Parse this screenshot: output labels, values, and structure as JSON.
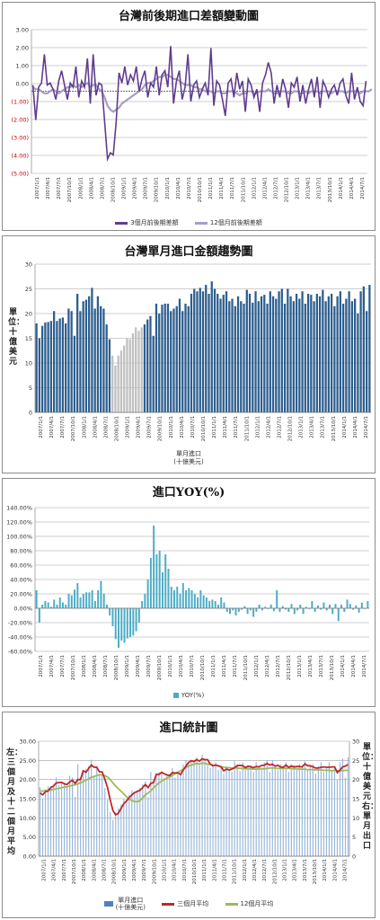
{
  "chart_data": [
    {
      "type": "line",
      "title": "台灣前後期進口差額變動圖",
      "y_ticks": [
        "3.00",
        "2.00",
        "1.00",
        "0.00",
        "(1.00)",
        "(2.00)",
        "(3.00)",
        "(4.00)",
        "(5.00)"
      ],
      "ylim": [
        -4,
        3
      ],
      "grid": true,
      "legend_position": "bottom",
      "series": [
        {
          "name": "3個月前後期差額",
          "color": "#5f3d8e",
          "values": [
            0.3,
            -1.4,
            0.2,
            0.4,
            1.8,
            0.3,
            0.4,
            0.1,
            -0.4,
            0.5,
            1.0,
            0.3,
            -0.4,
            0.4,
            0.2,
            1.2,
            -0.3,
            0.5,
            0.2,
            1.6,
            -0.6,
            1.8,
            -0.2,
            0.4,
            0.3,
            -1.5,
            -3.3,
            -3.0,
            -3.1,
            -1.5,
            0.9,
            0.4,
            1.2,
            0.3,
            0.8,
            0.5,
            1.2,
            0.0,
            0.6,
            1.0,
            -0.3,
            0.4,
            0.2,
            1.2,
            -0.2,
            0.8,
            1.0,
            0.2,
            2.2,
            -0.6,
            0.5,
            1.0,
            -0.4,
            0.2,
            1.8,
            -0.5,
            0.3,
            0.5,
            -0.3,
            0.1,
            0.4,
            -0.2,
            2.1,
            -0.7,
            0.5,
            0.3,
            -0.4,
            -1.2,
            0.4,
            0.6,
            -0.3,
            0.9,
            0.1,
            0.5,
            -1.0,
            0.6,
            0.3,
            -0.3,
            0.1,
            -1.0,
            0.4,
            0.8,
            1.4,
            0.9,
            -0.6,
            0.3,
            -0.3,
            0.6,
            0.1,
            -0.8,
            0.4,
            0.2,
            0.7,
            -0.5,
            0.3,
            -0.6,
            0.1,
            0.6,
            -0.3,
            0.7,
            -0.8,
            0.5,
            0.2,
            -0.3,
            0.1,
            0.3,
            -0.2,
            0.4,
            0.6,
            -0.2,
            -0.6,
            0.9,
            -0.4,
            0.2,
            -0.5,
            -0.7,
            0.5
          ]
        },
        {
          "name": "12個月前後期差額",
          "color": "#a99cc7",
          "values": [
            0.2,
            0.1,
            0.1,
            0.0,
            -0.1,
            -0.1,
            0.0,
            0.1,
            0.0,
            -0.1,
            0.0,
            0.1,
            0.2,
            0.2,
            0.3,
            0.2,
            0.3,
            0.2,
            0.3,
            0.4,
            0.2,
            0.3,
            0.3,
            0.1,
            0.0,
            -0.3,
            -0.7,
            -0.9,
            -1.0,
            -0.9,
            -0.8,
            -0.6,
            -0.5,
            -0.4,
            -0.3,
            -0.2,
            -0.1,
            0.0,
            0.1,
            0.3,
            0.4,
            0.4,
            0.5,
            0.6,
            0.7,
            0.7,
            0.8,
            0.8,
            0.7,
            0.6,
            0.6,
            0.5,
            0.4,
            0.3,
            0.3,
            0.3,
            0.2,
            0.2,
            0.1,
            0.1,
            0.0,
            0.0,
            0.0,
            -0.1,
            0.0,
            0.0,
            -0.1,
            -0.1,
            0.0,
            0.0,
            0.0,
            -0.1,
            -0.2,
            -0.1,
            -0.1,
            0.0,
            0.0,
            -0.1,
            -0.1,
            0.0,
            0.0,
            0.0,
            0.1,
            0.0,
            -0.1,
            -0.1,
            0.0,
            0.0,
            0.0,
            -0.1,
            -0.1,
            0.0,
            0.0,
            -0.1,
            -0.1,
            0.0,
            -0.1,
            0.0,
            0.0,
            0.0,
            -0.1,
            0.0,
            0.0,
            0.0,
            -0.1,
            0.0,
            0.0,
            0.0,
            0.0,
            -0.1,
            0.0,
            0.0,
            0.0,
            0.0,
            -0.1,
            0.0,
            0.0,
            0.0,
            0.1
          ]
        }
      ]
    },
    {
      "type": "bar",
      "title": "台灣單月進口金額趨勢圖",
      "ylabel": "單位：十億美元",
      "xlabel": "單月進口\n(十億美元)",
      "y_ticks": [
        "30",
        "25",
        "20",
        "15",
        "10",
        "5",
        "0"
      ],
      "ylim": [
        0,
        30
      ],
      "grid": true,
      "colors": {
        "normal": "#2d5e8e",
        "highlight": "#c0c0c0"
      },
      "highlight_range": [
        26,
        36
      ],
      "values": [
        18.0,
        15.0,
        17.5,
        18.2,
        18.3,
        18.5,
        20.5,
        18.5,
        19.0,
        19.2,
        18.0,
        21.0,
        20.5,
        15.5,
        24.0,
        20.5,
        22.5,
        22.8,
        23.5,
        25.2,
        21.0,
        23.5,
        21.5,
        21.0,
        17.8,
        14.8,
        11.5,
        9.5,
        11.5,
        12.5,
        13.5,
        15.0,
        14.8,
        16.0,
        17.2,
        16.5,
        17.2,
        17.8,
        18.8,
        19.5,
        15.5,
        22.0,
        20.0,
        21.8,
        22.0,
        22.0,
        20.5,
        21.0,
        21.5,
        23.0,
        20.5,
        22.0,
        21.5,
        24.0,
        25.0,
        24.5,
        25.2,
        24.5,
        25.8,
        24.0,
        26.5,
        25.0,
        24.0,
        23.0,
        23.8,
        24.5,
        22.5,
        23.0,
        21.5,
        23.5,
        22.5,
        22.0,
        24.8,
        24.0,
        22.2,
        24.5,
        22.5,
        23.5,
        23.8,
        22.0,
        24.5,
        23.5,
        23.0,
        24.5,
        25.0,
        22.0,
        25.0,
        23.5,
        22.5,
        24.0,
        23.0,
        24.5,
        22.0,
        24.0,
        23.8,
        22.5,
        24.0,
        23.5,
        24.8,
        22.5,
        23.5,
        24.0,
        21.5,
        23.5,
        24.5,
        22.0,
        23.0,
        24.5,
        22.5,
        23.0,
        20.0,
        24.5,
        25.5,
        20.5,
        25.8
      ]
    },
    {
      "type": "bar",
      "title": "進口YOY(%)",
      "y_ticks": [
        "140.00%",
        "120.00%",
        "100.00%",
        "80.00%",
        "60.00%",
        "40.00%",
        "20.00%",
        "0.00%",
        "-20.00%",
        "-40.00%",
        "-60.00%"
      ],
      "ylim": [
        -60,
        140
      ],
      "grid": true,
      "legend_position": "bottom",
      "series": [
        {
          "name": "YOY(%)",
          "color": "#4bacc6",
          "values": [
            25,
            -20,
            5,
            10,
            8,
            2,
            12,
            5,
            15,
            8,
            5,
            20,
            18,
            26,
            35,
            15,
            20,
            22,
            22,
            25,
            10,
            25,
            38,
            20,
            5,
            -10,
            -25,
            -43,
            -55,
            -45,
            -48,
            -42,
            -40,
            -38,
            -32,
            -20,
            10,
            20,
            40,
            70,
            115,
            75,
            80,
            50,
            75,
            55,
            30,
            25,
            30,
            20,
            35,
            25,
            28,
            25,
            20,
            15,
            25,
            18,
            15,
            10,
            12,
            10,
            5,
            15,
            8,
            -5,
            -8,
            -3,
            -10,
            -5,
            -2,
            3,
            -8,
            -3,
            -12,
            -5,
            5,
            -3,
            2,
            -1,
            5,
            -4,
            25,
            -5,
            3,
            -2,
            -5,
            6,
            -8,
            -3,
            5,
            -8,
            2,
            -1,
            10,
            -5,
            4,
            -2,
            8,
            -3,
            5,
            -8,
            6,
            -18,
            5,
            -5,
            12,
            6,
            -2,
            4,
            -6,
            8,
            -1,
            10
          ]
        }
      ]
    },
    {
      "type": "bar",
      "title": "進口統計圖",
      "ylabel_left": "左：三個月及十二個月平均",
      "ylabel_right": "單位：十億美元右：單月出口",
      "y_ticks": [
        "30.00",
        "25.00",
        "20.00",
        "15.00",
        "10.00",
        "5.00",
        "0.00"
      ],
      "y_ticks_right": [
        "30",
        "25",
        "20",
        "15",
        "10",
        "5",
        "0"
      ],
      "ylim": [
        0,
        30
      ],
      "grid": true,
      "legend_position": "bottom",
      "legend": [
        {
          "name": "單月進口\n(十億美元)",
          "color": "#4f81bd",
          "kind": "bar"
        },
        {
          "name": "三個月平均",
          "color": "#c0262c",
          "kind": "line"
        },
        {
          "name": "12個月平均",
          "color": "#9bbb59",
          "kind": "line"
        }
      ],
      "series": [
        {
          "name": "單月進口\n(十億美元)",
          "color": "#4f81bd",
          "values": [
            18.0,
            15.0,
            17.5,
            18.2,
            18.3,
            18.5,
            20.5,
            18.5,
            19.0,
            19.2,
            18.0,
            21.0,
            20.5,
            15.5,
            24.0,
            20.5,
            22.5,
            22.8,
            23.5,
            25.2,
            21.0,
            23.5,
            21.5,
            21.0,
            17.8,
            14.8,
            11.5,
            9.5,
            11.5,
            12.5,
            13.5,
            15.0,
            14.8,
            16.0,
            17.2,
            16.5,
            17.2,
            17.8,
            18.8,
            19.5,
            15.5,
            22.0,
            20.0,
            21.8,
            22.0,
            22.0,
            20.5,
            21.0,
            21.5,
            23.0,
            20.5,
            22.0,
            21.5,
            24.0,
            25.0,
            24.5,
            25.2,
            24.5,
            25.8,
            24.0,
            26.5,
            25.0,
            24.0,
            23.0,
            23.8,
            24.5,
            22.5,
            23.0,
            21.5,
            23.5,
            22.5,
            22.0,
            24.8,
            24.0,
            22.2,
            24.5,
            22.5,
            23.5,
            23.8,
            22.0,
            24.5,
            23.5,
            23.0,
            24.5,
            25.0,
            22.0,
            25.0,
            23.5,
            22.5,
            24.0,
            23.0,
            24.5,
            22.0,
            24.0,
            23.8,
            22.5,
            24.0,
            23.5,
            24.8,
            22.5,
            23.5,
            24.0,
            21.5,
            23.5,
            24.5,
            22.0,
            23.0,
            24.5,
            22.5,
            23.0,
            20.0,
            24.5,
            25.5,
            20.5,
            25.8
          ]
        },
        {
          "name": "三個月平均",
          "color": "#c0262c",
          "values": [
            16.5,
            16.0,
            16.8,
            17.0,
            17.9,
            18.3,
            19.1,
            19.2,
            19.3,
            18.9,
            18.7,
            19.4,
            19.8,
            19.0,
            20.0,
            20.0,
            22.3,
            21.9,
            22.9,
            23.8,
            23.2,
            23.2,
            22.0,
            22.0,
            20.1,
            17.9,
            14.7,
            11.9,
            10.8,
            11.2,
            12.5,
            13.7,
            14.4,
            15.3,
            16.0,
            16.6,
            16.9,
            17.2,
            17.9,
            18.7,
            17.9,
            19.0,
            19.2,
            21.3,
            21.3,
            21.9,
            21.5,
            21.2,
            21.0,
            21.8,
            21.7,
            21.8,
            21.3,
            22.5,
            23.5,
            24.5,
            24.9,
            24.7,
            25.2,
            24.8,
            25.4,
            25.2,
            25.2,
            24.0,
            23.6,
            23.8,
            23.6,
            23.3,
            22.3,
            22.7,
            22.5,
            22.7,
            23.1,
            23.6,
            23.7,
            23.6,
            23.1,
            23.5,
            23.3,
            23.1,
            23.4,
            23.3,
            23.7,
            23.7,
            24.2,
            23.8,
            24.0,
            23.5,
            23.7,
            23.3,
            23.2,
            23.8,
            23.2,
            23.5,
            23.3,
            23.4,
            23.4,
            23.3,
            24.1,
            23.6,
            23.6,
            23.3,
            23.0,
            23.0,
            23.2,
            23.3,
            23.2,
            23.2,
            23.3,
            23.3,
            21.8,
            22.5,
            23.3,
            23.5,
            23.9
          ]
        },
        {
          "name": "12個月平均",
          "color": "#9bbb59",
          "values": [
            17.0,
            17.0,
            17.1,
            17.2,
            17.3,
            17.4,
            17.6,
            17.7,
            17.9,
            18.0,
            18.1,
            18.3,
            18.5,
            18.6,
            18.9,
            19.1,
            19.5,
            19.8,
            20.2,
            20.6,
            20.8,
            21.1,
            21.2,
            21.2,
            21.0,
            20.7,
            20.0,
            19.1,
            18.3,
            17.6,
            16.9,
            16.3,
            15.5,
            14.9,
            14.5,
            14.3,
            14.2,
            14.5,
            15.2,
            16.0,
            16.5,
            17.1,
            17.8,
            18.5,
            19.1,
            19.6,
            20.0,
            20.4,
            20.7,
            21.1,
            21.5,
            21.9,
            22.3,
            22.7,
            23.1,
            23.5,
            23.8,
            24.0,
            24.2,
            24.1,
            24.3,
            24.2,
            24.1,
            23.9,
            23.8,
            23.7,
            23.5,
            23.4,
            23.2,
            23.1,
            23.1,
            23.0,
            23.0,
            23.0,
            22.9,
            22.9,
            22.8,
            22.8,
            22.8,
            22.7,
            22.7,
            22.8,
            22.8,
            22.8,
            22.9,
            23.0,
            23.0,
            23.0,
            22.9,
            22.9,
            22.9,
            22.9,
            22.9,
            22.9,
            22.8,
            22.8,
            22.7,
            22.7,
            22.7,
            22.6,
            22.6,
            22.6,
            22.5,
            22.5,
            22.5,
            22.4,
            22.4,
            22.4,
            22.3,
            22.4,
            22.3,
            22.3,
            22.3,
            22.4,
            22.4
          ]
        }
      ]
    }
  ],
  "x_axis": {
    "labels": [
      "2007/1/1",
      "2007/4/1",
      "2007/7/1",
      "2007/10/1",
      "2008/1/1",
      "2008/4/1",
      "2008/7/1",
      "2008/10/1",
      "2009/1/1",
      "2009/4/1",
      "2009/7/1",
      "2009/10/1",
      "2010/1/1",
      "2010/4/1",
      "2010/7/1",
      "2010/10/1",
      "2011/1/1",
      "2011/4/1",
      "2011/7/1",
      "2011/10/1",
      "2012/1/1",
      "2012/4/1",
      "2012/7/1",
      "2012/10/1",
      "2013/1/1",
      "2013/4/1",
      "2013/7/1",
      "2013/10/1",
      "2014/1/1",
      "2014/4/1",
      "2014/7/1"
    ]
  }
}
